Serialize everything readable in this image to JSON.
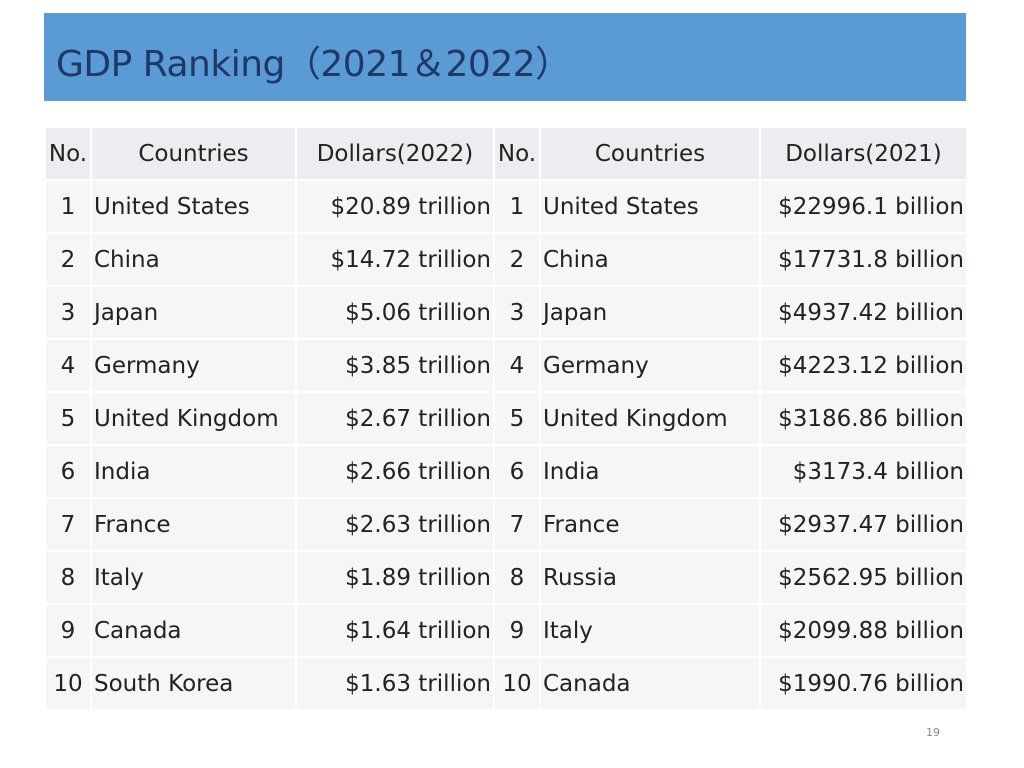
{
  "title": "GDP Ranking（2021＆2022）",
  "headers": {
    "no_left": "No.",
    "countries_left": "Countries",
    "dollars_left": "Dollars(2022)",
    "no_right": "No.",
    "countries_right": "Countries",
    "dollars_right": "Dollars(2021)"
  },
  "rows": [
    {
      "no_a": "1",
      "country_a": "United States",
      "value_a": "$20.89 trillion",
      "no_b": "1",
      "country_b": "United States",
      "value_b": "$22996.1 billion"
    },
    {
      "no_a": "2",
      "country_a": "China",
      "value_a": "$14.72 trillion",
      "no_b": "2",
      "country_b": "China",
      "value_b": "$17731.8 billion"
    },
    {
      "no_a": "3",
      "country_a": "Japan",
      "value_a": "$5.06 trillion",
      "no_b": "3",
      "country_b": "Japan",
      "value_b": "$4937.42 billion"
    },
    {
      "no_a": "4",
      "country_a": "Germany",
      "value_a": "$3.85 trillion",
      "no_b": "4",
      "country_b": "Germany",
      "value_b": "$4223.12 billion"
    },
    {
      "no_a": "5",
      "country_a": "United Kingdom",
      "value_a": "$2.67 trillion",
      "no_b": "5",
      "country_b": "United Kingdom",
      "value_b": "$3186.86 billion"
    },
    {
      "no_a": "6",
      "country_a": "India",
      "value_a": "$2.66 trillion",
      "no_b": "6",
      "country_b": "India",
      "value_b": "$3173.4 billion"
    },
    {
      "no_a": "7",
      "country_a": "France",
      "value_a": "$2.63 trillion",
      "no_b": "7",
      "country_b": "France",
      "value_b": "$2937.47 billion"
    },
    {
      "no_a": "8",
      "country_a": "Italy",
      "value_a": "$1.89 trillion",
      "no_b": "8",
      "country_b": "Russia",
      "value_b": "$2562.95 billion"
    },
    {
      "no_a": "9",
      "country_a": "Canada",
      "value_a": "$1.64 trillion",
      "no_b": "9",
      "country_b": "Italy",
      "value_b": "$2099.88 billion"
    },
    {
      "no_a": "10",
      "country_a": "South Korea",
      "value_a": "$1.63 trillion",
      "no_b": "10",
      "country_b": "Canada",
      "value_b": "$1990.76 billion"
    }
  ],
  "page_number": "19",
  "colors": {
    "title_bar": "#5b9bd5",
    "title_text": "#203864",
    "header_cell": "#ecedf0",
    "body_cell": "#f5f6f8"
  }
}
